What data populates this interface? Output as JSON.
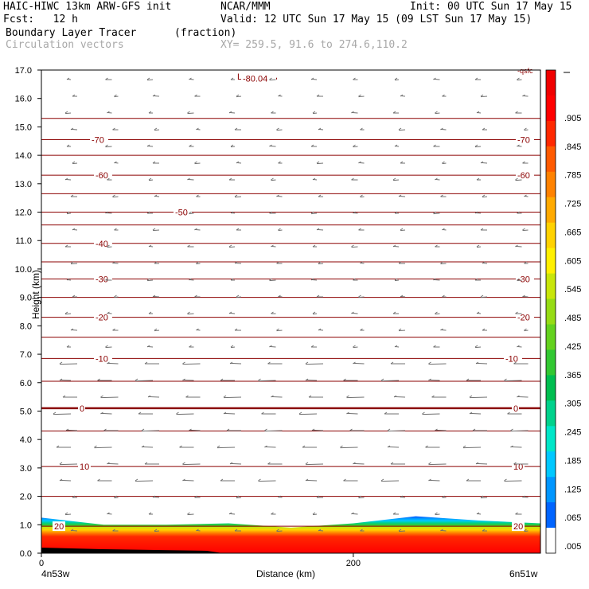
{
  "header": {
    "line1_left": "HAIC-HIWC 13km ARW-GFS init",
    "line1_mid": "NCAR/MMM",
    "line1_right": "Init: 00 UTC Sun 17 May 15",
    "line2_left": "Fcst:   12 h",
    "line2_right": "Valid: 12 UTC Sun 17 May 15 (09 LST Sun 17 May 15)",
    "line3_left": "Boundary Layer Tracer",
    "line3_mid": "(fraction)",
    "line4_left": "Circulation vectors",
    "line4_mid": "XY= 259.5, 91.6 to 274.6,110.2"
  },
  "chart_data": {
    "type": "heatmap",
    "title": "Boundary Layer Tracer (fraction)",
    "ylabel": "Height (km)",
    "xlabel": "Distance (km)",
    "ylim": [
      0,
      17
    ],
    "xlim": [
      0,
      320
    ],
    "y_ticks": [
      "0.0",
      "1.0",
      "2.0",
      "3.0",
      "4.0",
      "5.0",
      "6.0",
      "7.0",
      "8.0",
      "9.0",
      "10.0",
      "11.0",
      "12.0",
      "13.0",
      "14.0",
      "15.0",
      "16.0",
      "17.0"
    ],
    "x_ticks": [
      {
        "value": 0,
        "label": "0"
      },
      {
        "value": 200,
        "label": "200"
      }
    ],
    "x_endpoint_labels": {
      "left": "4n53w",
      "right": "6n51w"
    },
    "colorbar": {
      "labels": [
        ".005",
        ".065",
        ".125",
        ".185",
        ".245",
        ".305",
        ".365",
        ".425",
        ".485",
        ".545",
        ".605",
        ".665",
        ".725",
        ".785",
        ".845",
        ".905"
      ],
      "colors": [
        "#ffffff",
        "#0064ff",
        "#0096ff",
        "#00c8ff",
        "#00e6c8",
        "#00d28c",
        "#00be50",
        "#32c832",
        "#64d21e",
        "#96dc14",
        "#c8e60a",
        "#fff000",
        "#ffd200",
        "#ffaa00",
        "#ff8200",
        "#ff5a00",
        "#ff2800",
        "#ff0000",
        "#f00000"
      ]
    },
    "boundary_layer_top_km": [
      {
        "x": 0,
        "y": 1.25
      },
      {
        "x": 40,
        "y": 1.0
      },
      {
        "x": 80,
        "y": 1.0
      },
      {
        "x": 120,
        "y": 1.05
      },
      {
        "x": 160,
        "y": 0.9
      },
      {
        "x": 200,
        "y": 1.05
      },
      {
        "x": 240,
        "y": 1.3
      },
      {
        "x": 280,
        "y": 1.15
      },
      {
        "x": 320,
        "y": 1.05
      }
    ],
    "temperature_contours": [
      {
        "value": -80,
        "label": "-80.04",
        "y_km": 16.7
      },
      {
        "value": -70,
        "label": "-70",
        "y_km": 14.55
      },
      {
        "value": -60,
        "label": "-60",
        "y_km": 13.3
      },
      {
        "value": -50,
        "label": "-50",
        "y_km": 12.0
      },
      {
        "value": -40,
        "label": "-40",
        "y_km": 10.9
      },
      {
        "value": -30,
        "label": "-30",
        "y_km": 9.65
      },
      {
        "value": -20,
        "label": "-20",
        "y_km": 8.3
      },
      {
        "value": -10,
        "label": "-10",
        "y_km": 6.85
      },
      {
        "value": 0,
        "label": "0",
        "y_km": 5.1
      },
      {
        "value": 10,
        "label": "10",
        "y_km": 3.05
      },
      {
        "value": 20,
        "label": "20",
        "y_km": 0.95
      }
    ],
    "unlabeled_contour_levels_km": [
      15.3,
      14.0,
      12.65,
      11.55,
      10.25,
      9.0,
      7.6,
      6.05,
      4.3,
      2.0
    ],
    "low_marker": "L",
    "corner_label": "-qsfc"
  }
}
